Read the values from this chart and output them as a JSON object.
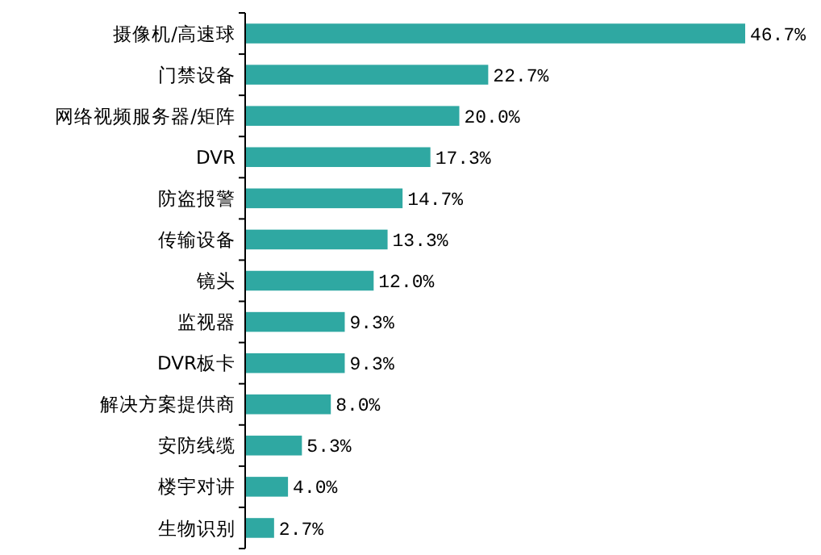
{
  "chart_data": {
    "type": "bar",
    "orientation": "horizontal",
    "categories": [
      "摄像机/高速球",
      "门禁设备",
      "网络视频服务器/矩阵",
      "DVR",
      "防盗报警",
      "传输设备",
      "镜头",
      "监视器",
      "DVR板卡",
      "解决方案提供商",
      "安防线缆",
      "楼宇对讲",
      "生物识别"
    ],
    "values": [
      46.7,
      22.7,
      20.0,
      17.3,
      14.7,
      13.3,
      12.0,
      9.3,
      9.3,
      8.0,
      5.3,
      4.0,
      2.7
    ],
    "value_labels": [
      "46.7%",
      "22.7%",
      "20.0%",
      "17.3%",
      "14.7%",
      "13.3%",
      "12.0%",
      "9.3%",
      "9.3%",
      "8.0%",
      "5.3%",
      "4.0%",
      "2.7%"
    ],
    "color": "#2fa8a2"
  }
}
